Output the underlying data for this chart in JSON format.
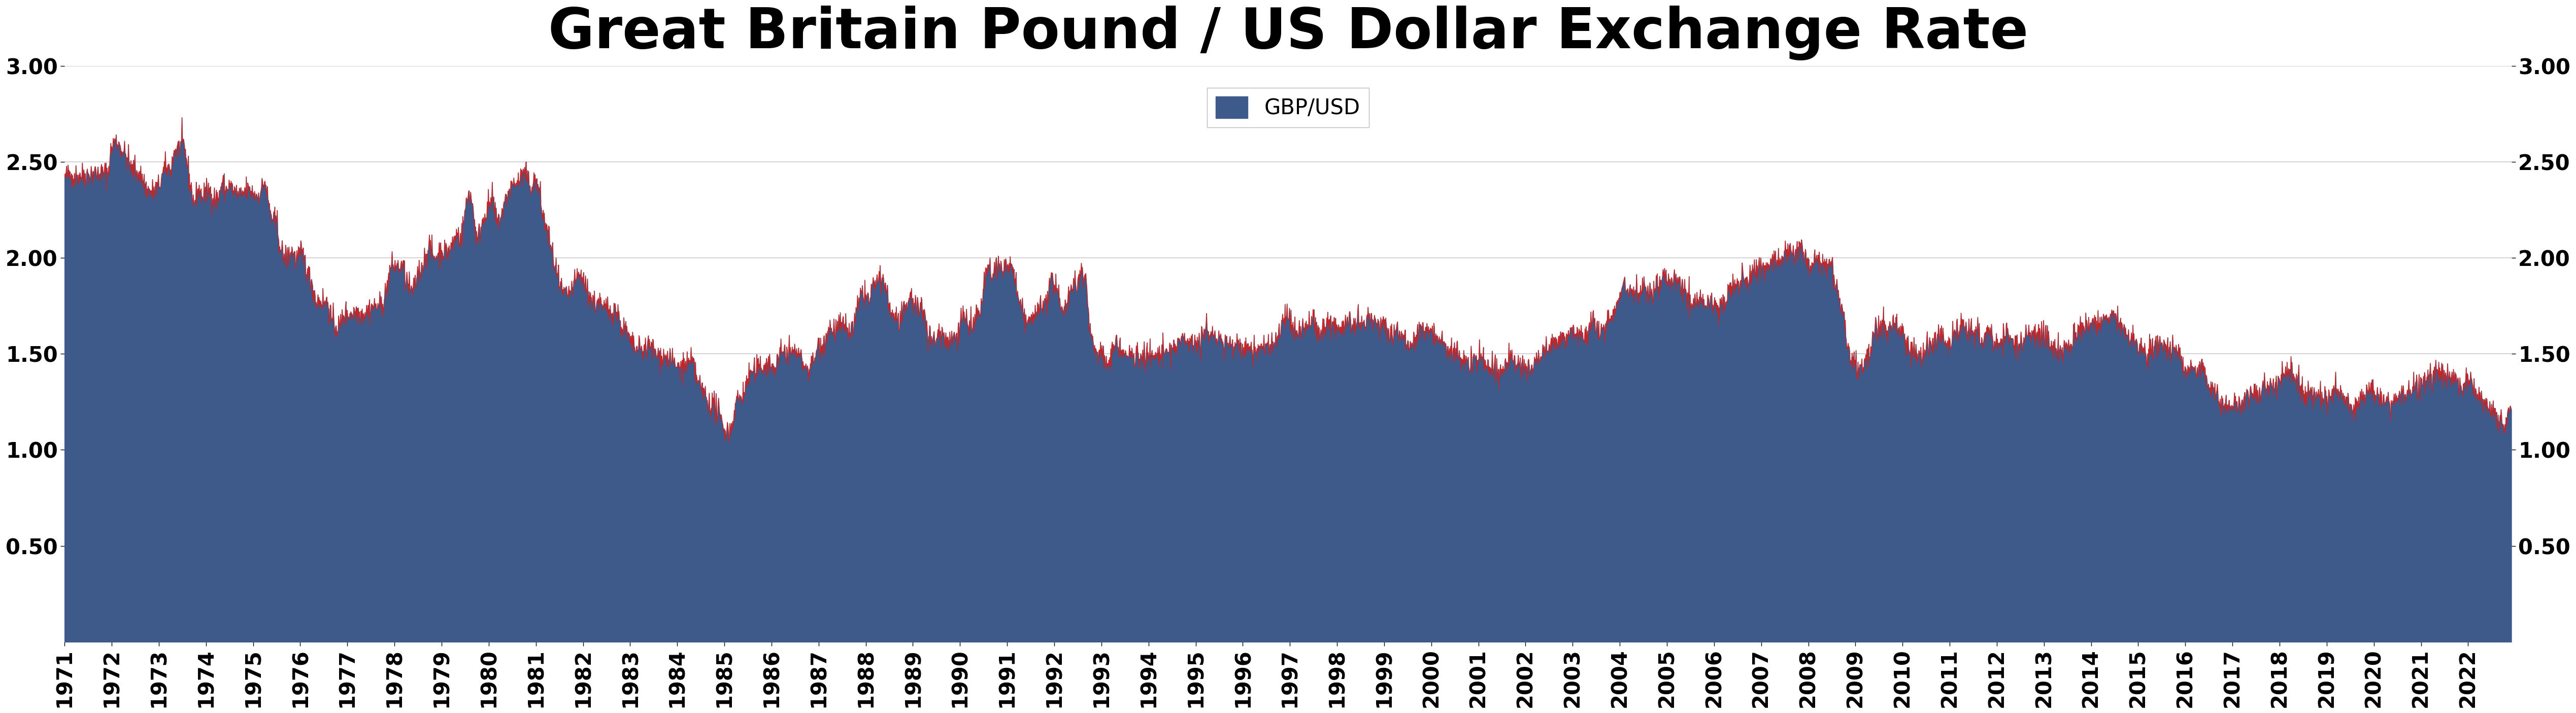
{
  "title": "Great Britain Pound / US Dollar Exchange Rate",
  "legend_label": "GBP/USD",
  "fill_color": "#3d5a8a",
  "line_color": "#cc2222",
  "background_color": "#ffffff",
  "grid_color": "#cccccc",
  "yticks": [
    0.5,
    1.0,
    1.5,
    2.0,
    2.5,
    3.0
  ],
  "ylim": [
    0.0,
    3.0
  ],
  "xlim_start": 1971,
  "xlim_end": 2022,
  "title_fontsize": 80,
  "tick_fontsize": 30,
  "legend_fontsize": 30,
  "monthly_data": {
    "1971": [
      2.42,
      2.43,
      2.43,
      2.43,
      2.43,
      2.43,
      2.44,
      2.44,
      2.44,
      2.44,
      2.44,
      2.44
    ],
    "1972": [
      2.58,
      2.61,
      2.59,
      2.55,
      2.52,
      2.46,
      2.46,
      2.44,
      2.4,
      2.36,
      2.34,
      2.35
    ],
    "1973": [
      2.37,
      2.44,
      2.47,
      2.46,
      2.56,
      2.57,
      2.6,
      2.52,
      2.38,
      2.28,
      2.36,
      2.32
    ],
    "1974": [
      2.34,
      2.35,
      2.31,
      2.3,
      2.39,
      2.35,
      2.38,
      2.35,
      2.33,
      2.32,
      2.35,
      2.35
    ],
    "1975": [
      2.34,
      2.32,
      2.35,
      2.4,
      2.27,
      2.19,
      2.19,
      2.04,
      2.0,
      2.01,
      2.04,
      1.99
    ],
    "1976": [
      2.02,
      2.0,
      1.91,
      1.87,
      1.77,
      1.78,
      1.77,
      1.77,
      1.67,
      1.64,
      1.64,
      1.7
    ],
    "1977": [
      1.71,
      1.71,
      1.72,
      1.72,
      1.71,
      1.72,
      1.74,
      1.75,
      1.75,
      1.76,
      1.84,
      1.95
    ],
    "1978": [
      1.96,
      1.95,
      1.96,
      1.88,
      1.83,
      1.83,
      1.93,
      1.95,
      2.02,
      2.06,
      2.0,
      2.02
    ],
    "1979": [
      2.04,
      2.03,
      2.04,
      2.08,
      2.13,
      2.1,
      2.25,
      2.35,
      2.26,
      2.08,
      2.16,
      2.23
    ],
    "1980": [
      2.27,
      2.31,
      2.18,
      2.21,
      2.28,
      2.34,
      2.38,
      2.39,
      2.41,
      2.44,
      2.4,
      2.37
    ],
    "1981": [
      2.41,
      2.33,
      2.19,
      2.14,
      2.03,
      1.95,
      1.85,
      1.81,
      1.8,
      1.83,
      1.87,
      1.91
    ],
    "1982": [
      1.89,
      1.83,
      1.79,
      1.76,
      1.78,
      1.73,
      1.74,
      1.72,
      1.74,
      1.7,
      1.63,
      1.62
    ],
    "1983": [
      1.56,
      1.53,
      1.52,
      1.52,
      1.53,
      1.54,
      1.52,
      1.49,
      1.49,
      1.48,
      1.48,
      1.45
    ],
    "1984": [
      1.43,
      1.43,
      1.44,
      1.45,
      1.45,
      1.37,
      1.32,
      1.29,
      1.24,
      1.24,
      1.21,
      1.16
    ],
    "1985": [
      1.11,
      1.09,
      1.13,
      1.26,
      1.27,
      1.3,
      1.37,
      1.41,
      1.4,
      1.43,
      1.44,
      1.45
    ],
    "1986": [
      1.43,
      1.43,
      1.49,
      1.51,
      1.52,
      1.5,
      1.52,
      1.49,
      1.46,
      1.42,
      1.43,
      1.48
    ],
    "1987": [
      1.55,
      1.55,
      1.6,
      1.64,
      1.62,
      1.64,
      1.64,
      1.64,
      1.61,
      1.65,
      1.74,
      1.82
    ],
    "1988": [
      1.81,
      1.77,
      1.87,
      1.87,
      1.87,
      1.87,
      1.73,
      1.7,
      1.68,
      1.68,
      1.71,
      1.79
    ],
    "1989": [
      1.79,
      1.73,
      1.73,
      1.72,
      1.59,
      1.57,
      1.58,
      1.62,
      1.59,
      1.57,
      1.58,
      1.6
    ],
    "1990": [
      1.65,
      1.72,
      1.65,
      1.63,
      1.69,
      1.7,
      1.84,
      1.96,
      1.88,
      1.95,
      1.97,
      1.93
    ],
    "1991": [
      1.95,
      1.97,
      1.89,
      1.76,
      1.72,
      1.66,
      1.68,
      1.68,
      1.76,
      1.73,
      1.78,
      1.87
    ],
    "1992": [
      1.86,
      1.81,
      1.74,
      1.76,
      1.83,
      1.86,
      1.89,
      1.92,
      1.92,
      1.62,
      1.54,
      1.51
    ],
    "1993": [
      1.52,
      1.44,
      1.44,
      1.55,
      1.55,
      1.52,
      1.5,
      1.49,
      1.49,
      1.48,
      1.5,
      1.49
    ],
    "1994": [
      1.49,
      1.48,
      1.49,
      1.5,
      1.5,
      1.51,
      1.53,
      1.54,
      1.56,
      1.57,
      1.58,
      1.57
    ],
    "1995": [
      1.57,
      1.56,
      1.6,
      1.62,
      1.61,
      1.59,
      1.59,
      1.55,
      1.55,
      1.55,
      1.56,
      1.55
    ],
    "1996": [
      1.52,
      1.53,
      1.54,
      1.51,
      1.51,
      1.54,
      1.55,
      1.55,
      1.56,
      1.58,
      1.67,
      1.69
    ],
    "1997": [
      1.69,
      1.63,
      1.6,
      1.63,
      1.64,
      1.65,
      1.69,
      1.62,
      1.6,
      1.64,
      1.68,
      1.65
    ],
    "1998": [
      1.64,
      1.64,
      1.66,
      1.67,
      1.63,
      1.66,
      1.63,
      1.65,
      1.69,
      1.68,
      1.66,
      1.65
    ],
    "1999": [
      1.66,
      1.62,
      1.6,
      1.62,
      1.61,
      1.6,
      1.57,
      1.55,
      1.56,
      1.64,
      1.62,
      1.62
    ],
    "2000": [
      1.63,
      1.58,
      1.59,
      1.56,
      1.51,
      1.5,
      1.51,
      1.49,
      1.47,
      1.46,
      1.43,
      1.49
    ],
    "2001": [
      1.47,
      1.47,
      1.44,
      1.43,
      1.43,
      1.4,
      1.42,
      1.45,
      1.47,
      1.45,
      1.45,
      1.45
    ],
    "2002": [
      1.45,
      1.42,
      1.42,
      1.47,
      1.47,
      1.52,
      1.55,
      1.55,
      1.56,
      1.59,
      1.59,
      1.6
    ],
    "2003": [
      1.63,
      1.59,
      1.58,
      1.57,
      1.62,
      1.67,
      1.62,
      1.59,
      1.64,
      1.67,
      1.7,
      1.73
    ],
    "2004": [
      1.82,
      1.88,
      1.84,
      1.84,
      1.82,
      1.82,
      1.84,
      1.83,
      1.8,
      1.84,
      1.84,
      1.94
    ],
    "2005": [
      1.88,
      1.87,
      1.9,
      1.9,
      1.87,
      1.81,
      1.74,
      1.79,
      1.77,
      1.77,
      1.74,
      1.77
    ],
    "2006": [
      1.76,
      1.75,
      1.74,
      1.77,
      1.87,
      1.84,
      1.85,
      1.89,
      1.89,
      1.89,
      1.94,
      1.96
    ],
    "2007": [
      1.96,
      1.96,
      1.96,
      2.0,
      1.99,
      1.99,
      2.03,
      2.01,
      2.02,
      2.04,
      2.07,
      1.99
    ],
    "2008": [
      1.98,
      1.96,
      2.0,
      1.98,
      1.96,
      1.97,
      1.99,
      1.86,
      1.79,
      1.72,
      1.53,
      1.46
    ],
    "2009": [
      1.44,
      1.43,
      1.43,
      1.47,
      1.52,
      1.65,
      1.63,
      1.65,
      1.61,
      1.64,
      1.66,
      1.62
    ],
    "2010": [
      1.61,
      1.56,
      1.51,
      1.53,
      1.48,
      1.47,
      1.53,
      1.55,
      1.55,
      1.59,
      1.59,
      1.55
    ],
    "2011": [
      1.58,
      1.61,
      1.62,
      1.64,
      1.64,
      1.61,
      1.6,
      1.63,
      1.55,
      1.6,
      1.6,
      1.56
    ],
    "2012": [
      1.55,
      1.58,
      1.59,
      1.6,
      1.58,
      1.55,
      1.56,
      1.57,
      1.61,
      1.61,
      1.59,
      1.62
    ],
    "2013": [
      1.6,
      1.57,
      1.51,
      1.53,
      1.52,
      1.53,
      1.52,
      1.55,
      1.61,
      1.61,
      1.63,
      1.65
    ],
    "2014": [
      1.66,
      1.66,
      1.66,
      1.68,
      1.69,
      1.7,
      1.71,
      1.66,
      1.63,
      1.6,
      1.57,
      1.56
    ],
    "2015": [
      1.51,
      1.54,
      1.49,
      1.49,
      1.54,
      1.57,
      1.56,
      1.55,
      1.52,
      1.53,
      1.51,
      1.49
    ],
    "2016": [
      1.43,
      1.42,
      1.43,
      1.43,
      1.45,
      1.43,
      1.32,
      1.31,
      1.31,
      1.22,
      1.24,
      1.24
    ],
    "2017": [
      1.23,
      1.25,
      1.23,
      1.28,
      1.29,
      1.28,
      1.29,
      1.29,
      1.34,
      1.32,
      1.32,
      1.34
    ],
    "2018": [
      1.36,
      1.4,
      1.39,
      1.42,
      1.35,
      1.33,
      1.31,
      1.3,
      1.31,
      1.3,
      1.29,
      1.27
    ],
    "2019": [
      1.28,
      1.28,
      1.31,
      1.3,
      1.27,
      1.27,
      1.24,
      1.21,
      1.23,
      1.28,
      1.29,
      1.31
    ],
    "2020": [
      1.31,
      1.29,
      1.24,
      1.25,
      1.24,
      1.25,
      1.27,
      1.31,
      1.29,
      1.3,
      1.32,
      1.35
    ],
    "2021": [
      1.36,
      1.39,
      1.39,
      1.38,
      1.41,
      1.41,
      1.38,
      1.37,
      1.37,
      1.37,
      1.34,
      1.35
    ],
    "2022": [
      1.36,
      1.35,
      1.31,
      1.3,
      1.25,
      1.22,
      1.2,
      1.19,
      1.15,
      1.13,
      1.19,
      1.21
    ]
  }
}
